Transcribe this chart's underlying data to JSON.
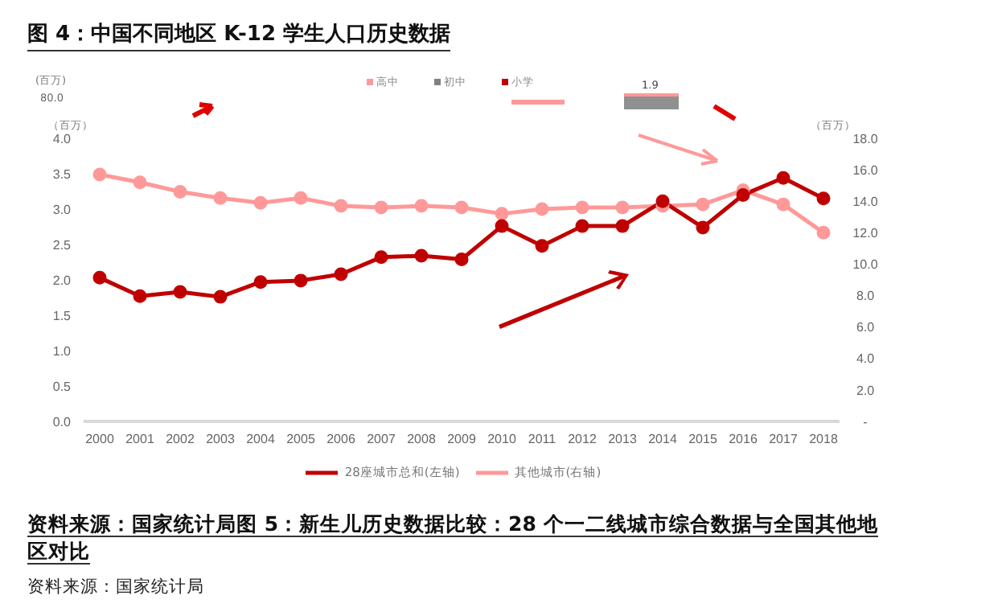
{
  "chart_data": {
    "type": "line",
    "title": "图 4：中国不同地区 K-12 学生人口历史数据",
    "ylabel": "（百万）",
    "y2label": "（百万）",
    "categories": [
      "2000",
      "2001",
      "2002",
      "2003",
      "2004",
      "2005",
      "2006",
      "2007",
      "2008",
      "2009",
      "2010",
      "2011",
      "2012",
      "2013",
      "2014",
      "2015",
      "2016",
      "2017",
      "2018"
    ],
    "series": [
      {
        "name": "28座城市总和(左轴)",
        "color": "#c00000",
        "values": [
          2.03,
          1.77,
          1.83,
          1.76,
          1.97,
          1.99,
          2.08,
          2.32,
          2.34,
          2.29,
          2.76,
          2.48,
          2.76,
          2.76,
          3.11,
          2.74,
          3.2,
          3.44,
          3.15
        ]
      },
      {
        "name": "其他城市(右轴)",
        "color": "#ff9999",
        "axis": "y2",
        "values": [
          15.7,
          15.2,
          14.6,
          14.2,
          13.9,
          14.2,
          13.7,
          13.6,
          13.7,
          13.6,
          13.2,
          13.5,
          13.6,
          13.6,
          13.7,
          13.8,
          14.7,
          13.8,
          12.0
        ]
      }
    ],
    "ylim": [
      0,
      4
    ],
    "yticks": [
      {
        "value": 0,
        "label": "0.0"
      },
      0.5,
      {
        "value": 1,
        "label": "1.0"
      },
      1.5,
      {
        "value": 2,
        "label": "2.0"
      },
      2.5,
      {
        "value": 3,
        "label": "3.0"
      },
      3.5,
      {
        "value": 4,
        "label": "4.0"
      }
    ],
    "y2lim": [
      0,
      18
    ],
    "y2ticks": [
      {
        "value": 0,
        "label": "-"
      },
      {
        "value": 2,
        "label": "2.0"
      },
      {
        "value": 4,
        "label": "4.0"
      },
      {
        "value": 6,
        "label": "6.0"
      },
      {
        "value": 8,
        "label": "8.0"
      },
      {
        "value": 10,
        "label": "10.0"
      },
      {
        "value": 12,
        "label": "12.0"
      },
      {
        "value": 14,
        "label": "14.0"
      },
      {
        "value": 16,
        "label": "16.0"
      },
      {
        "value": 18,
        "label": "18.0"
      }
    ],
    "grid": false,
    "legend": "bottom",
    "marker": "circle",
    "line_style": "solid",
    "annotations": [
      "(百万)",
      "80.0",
      "高中",
      "初中",
      "小学",
      "1.9",
      "资料来源：国家统计局",
      "图 5：新生儿历史数据比较：28 个一二线城市综合数据与全国其他地区对比",
      "资料来源：国家统计局"
    ]
  }
}
